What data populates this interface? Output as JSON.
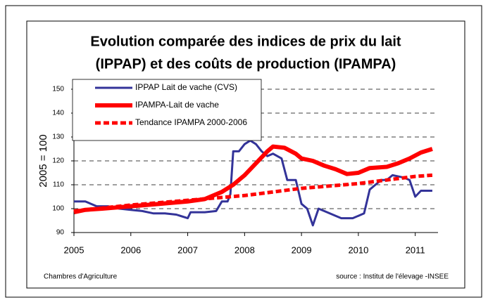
{
  "chart_data": {
    "type": "line",
    "title": [
      "Evolution comparée des indices de prix du lait",
      "(IPPAP) et des coûts de production (IPAMPA)"
    ],
    "ylabel": "2005 = 100",
    "source_left": "Chambres d'Agriculture",
    "source_right": "source : Institut de l'élevage -INSEE",
    "xlim": [
      2005,
      2011.4
    ],
    "xticks": [
      2005,
      2006,
      2007,
      2008,
      2009,
      2010,
      2011
    ],
    "ylim": [
      90,
      150
    ],
    "yticks": [
      90,
      100,
      110,
      120,
      130,
      140,
      150
    ],
    "grid": true,
    "series": [
      {
        "name": "IPPAP Lait de vache (CVS)",
        "color": "#333399",
        "style": "solid",
        "x": [
          2005,
          2005.2,
          2005.4,
          2005.6,
          2005.8,
          2006,
          2006.2,
          2006.4,
          2006.6,
          2006.8,
          2007,
          2007.05,
          2007.3,
          2007.5,
          2007.6,
          2007.7,
          2007.75,
          2007.8,
          2007.9,
          2008,
          2008.1,
          2008.2,
          2008.3,
          2008.4,
          2008.5,
          2008.65,
          2008.75,
          2008.9,
          2009,
          2009.1,
          2009.2,
          2009.3,
          2009.4,
          2009.6,
          2009.7,
          2009.9,
          2010,
          2010.1,
          2010.2,
          2010.3,
          2010.4,
          2010.5,
          2010.6,
          2010.8,
          2010.9,
          2011,
          2011.1,
          2011.3
        ],
        "values": [
          103,
          103,
          101,
          101,
          100,
          99.5,
          99,
          98,
          98,
          97.5,
          96,
          98.5,
          98.5,
          99,
          103,
          103,
          106,
          124,
          124,
          127,
          128.5,
          127,
          124,
          122,
          123,
          121,
          112,
          112,
          102,
          100,
          93,
          100,
          99,
          97,
          96,
          96,
          97,
          98,
          108,
          110,
          112,
          112,
          114,
          113,
          112,
          105,
          107.5,
          107.5
        ]
      },
      {
        "name": "IPAMPA-Lait de vache",
        "color": "#ff0000",
        "style": "thick",
        "x": [
          2005,
          2005.2,
          2005.5,
          2006,
          2006.5,
          2007,
          2007.3,
          2007.6,
          2007.8,
          2008,
          2008.2,
          2008.4,
          2008.5,
          2008.7,
          2008.9,
          2009,
          2009.2,
          2009.4,
          2009.6,
          2009.8,
          2010,
          2010.2,
          2010.5,
          2010.7,
          2010.9,
          2011.1,
          2011.3
        ],
        "values": [
          98.5,
          99.5,
          100,
          101,
          102,
          103,
          104,
          107,
          110,
          114,
          119,
          124,
          126,
          125.5,
          123,
          121,
          120,
          118,
          116.5,
          114.5,
          115,
          117,
          117.5,
          119,
          121,
          123.5,
          125
        ]
      },
      {
        "name": "Tendance IPAMPA 2000-2006",
        "color": "#ff0000",
        "style": "dashed",
        "x": [
          2005,
          2006,
          2007,
          2008,
          2009,
          2010,
          2011,
          2011.3
        ],
        "values": [
          99,
          101.5,
          103.5,
          105.5,
          108.5,
          110.5,
          113.5,
          114
        ]
      }
    ]
  }
}
